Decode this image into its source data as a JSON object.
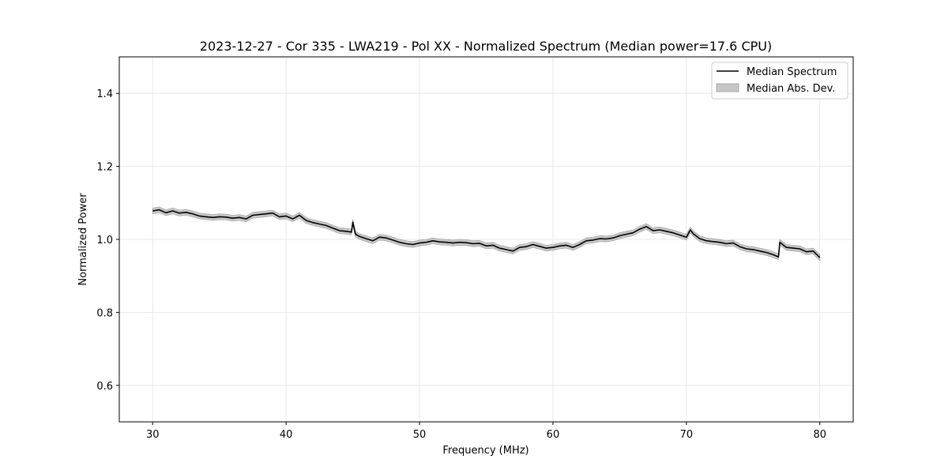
{
  "chart_data": {
    "type": "line",
    "title": "2023-12-27 - Cor 335 - LWA219 - Pol XX - Normalized Spectrum (Median power=17.6 CPU)",
    "xlabel": "Frequency (MHz)",
    "ylabel": "Normalized Power",
    "xlim": [
      27.5,
      82.5
    ],
    "ylim": [
      0.5,
      1.5
    ],
    "xticks": [
      30,
      40,
      50,
      60,
      70,
      80
    ],
    "xtick_labels": [
      "30",
      "40",
      "50",
      "60",
      "70",
      "80"
    ],
    "yticks": [
      0.6,
      0.8,
      1.0,
      1.2,
      1.4
    ],
    "ytick_labels": [
      "0.6",
      "0.8",
      "1.0",
      "1.2",
      "1.4"
    ],
    "grid": true,
    "legend_position": "upper right",
    "legend": [
      {
        "label": "Median Spectrum",
        "kind": "line",
        "color": "#000000"
      },
      {
        "label": "Median Abs. Dev.",
        "kind": "band",
        "color": "#bdbdbd"
      }
    ],
    "series": [
      {
        "name": "Median Spectrum",
        "color": "#000000",
        "x": [
          30.0,
          30.5,
          31.0,
          31.5,
          32.0,
          32.5,
          33.0,
          33.5,
          34.0,
          34.5,
          35.0,
          35.5,
          36.0,
          36.5,
          37.0,
          37.5,
          38.0,
          38.5,
          39.0,
          39.5,
          40.0,
          40.5,
          41.0,
          41.5,
          42.0,
          42.5,
          43.0,
          43.5,
          44.0,
          44.5,
          44.9,
          45.0,
          45.2,
          45.5,
          46.0,
          46.5,
          47.0,
          47.5,
          48.0,
          48.5,
          49.0,
          49.5,
          50.0,
          50.5,
          51.0,
          51.5,
          52.0,
          52.5,
          53.0,
          53.5,
          54.0,
          54.5,
          55.0,
          55.5,
          56.0,
          56.5,
          57.0,
          57.5,
          58.0,
          58.5,
          59.0,
          59.5,
          60.0,
          60.5,
          61.0,
          61.5,
          62.0,
          62.5,
          63.0,
          63.5,
          64.0,
          64.5,
          65.0,
          65.5,
          66.0,
          66.5,
          67.0,
          67.5,
          68.0,
          68.5,
          69.0,
          69.5,
          70.0,
          70.3,
          70.5,
          71.0,
          71.5,
          72.0,
          72.5,
          73.0,
          73.5,
          74.0,
          74.5,
          75.0,
          75.5,
          76.0,
          76.5,
          76.9,
          77.0,
          77.5,
          78.0,
          78.5,
          79.0,
          79.5,
          80.0
        ],
        "y": [
          1.078,
          1.081,
          1.073,
          1.078,
          1.072,
          1.074,
          1.07,
          1.064,
          1.062,
          1.06,
          1.062,
          1.061,
          1.058,
          1.06,
          1.056,
          1.066,
          1.068,
          1.07,
          1.072,
          1.062,
          1.064,
          1.056,
          1.066,
          1.052,
          1.046,
          1.042,
          1.038,
          1.031,
          1.024,
          1.022,
          1.02,
          1.047,
          1.014,
          1.008,
          1.002,
          0.996,
          1.006,
          1.004,
          0.998,
          0.992,
          0.988,
          0.986,
          0.99,
          0.992,
          0.996,
          0.993,
          0.992,
          0.99,
          0.992,
          0.991,
          0.988,
          0.989,
          0.982,
          0.984,
          0.976,
          0.972,
          0.968,
          0.978,
          0.98,
          0.986,
          0.981,
          0.976,
          0.978,
          0.982,
          0.984,
          0.978,
          0.986,
          0.996,
          0.998,
          1.002,
          1.001,
          1.004,
          1.01,
          1.014,
          1.018,
          1.028,
          1.035,
          1.024,
          1.026,
          1.022,
          1.018,
          1.012,
          1.006,
          1.026,
          1.016,
          1.002,
          0.996,
          0.994,
          0.992,
          0.988,
          0.99,
          0.98,
          0.974,
          0.972,
          0.968,
          0.964,
          0.958,
          0.952,
          0.992,
          0.978,
          0.976,
          0.974,
          0.966,
          0.968,
          0.95
        ]
      }
    ],
    "band": {
      "name": "Median Abs. Dev.",
      "color": "#bdbdbd",
      "halfwidth": 0.008
    }
  }
}
